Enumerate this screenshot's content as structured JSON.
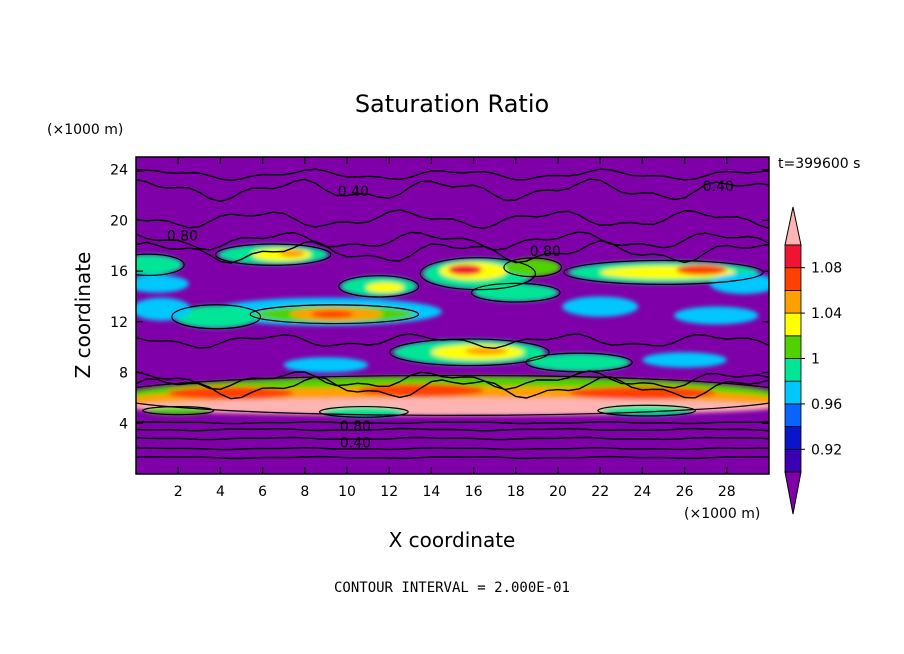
{
  "chart_data": {
    "type": "heatmap",
    "title": "Saturation Ratio",
    "xlabel": "X coordinate",
    "ylabel": "Z coordinate",
    "x_unit": "(×1000 m)",
    "y_unit": "(×1000 m)",
    "time_label": "t=399600 s",
    "footer": "CONTOUR INTERVAL = 2.000E-01",
    "xlim": [
      0,
      30
    ],
    "ylim": [
      0,
      25
    ],
    "x_ticks": [
      2,
      4,
      6,
      8,
      10,
      12,
      14,
      16,
      18,
      20,
      22,
      24,
      26,
      28
    ],
    "y_ticks": [
      4,
      8,
      12,
      16,
      20,
      24
    ],
    "colorbar": {
      "levels": [
        0.9,
        0.92,
        0.94,
        0.96,
        0.98,
        1.0,
        1.02,
        1.04,
        1.06,
        1.08,
        1.1
      ],
      "labels": [
        "0.92",
        "0.96",
        "1",
        "1.04",
        "1.08"
      ],
      "colors": [
        "#7f00a8",
        "#3c00b4",
        "#0a14c8",
        "#0a64ff",
        "#00c8ff",
        "#00e696",
        "#50d200",
        "#ffff00",
        "#ffa000",
        "#ff4000",
        "#f01432",
        "#ffb4b4"
      ]
    },
    "background_color": "#7f00a8",
    "contour_labels": [
      {
        "text": "0.40",
        "x": 10.3,
        "z": 22.3
      },
      {
        "text": "0.40",
        "x": 27.6,
        "z": 22.7
      },
      {
        "text": "0.80",
        "x": 2.2,
        "z": 18.8
      },
      {
        "text": "0.80",
        "x": 19.4,
        "z": 17.6
      },
      {
        "text": "0.80",
        "x": 10.4,
        "z": 3.8
      },
      {
        "text": "0.40",
        "x": 10.4,
        "z": 2.5
      }
    ],
    "features": [
      {
        "name": "upper-band-left",
        "x": 0.6,
        "z": 16.5,
        "rx": 1.6,
        "rz": 0.8,
        "level": 5
      },
      {
        "name": "upper-band-left2",
        "x": 1.0,
        "z": 15.0,
        "rx": 1.5,
        "rz": 0.7,
        "level": 4
      },
      {
        "name": "blob-7-17",
        "x": 6.5,
        "z": 17.3,
        "rx": 2.6,
        "rz": 0.8,
        "level": 5
      },
      {
        "name": "blob-7-17-core",
        "x": 6.9,
        "z": 17.3,
        "rx": 1.4,
        "rz": 0.5,
        "level": 7
      },
      {
        "name": "blob-7-17-hot",
        "x": 7.4,
        "z": 17.4,
        "rx": 0.6,
        "rz": 0.3,
        "level": 8
      },
      {
        "name": "blob-12-15",
        "x": 11.5,
        "z": 14.8,
        "rx": 1.8,
        "rz": 0.8,
        "level": 5
      },
      {
        "name": "blob-12-15-core",
        "x": 11.8,
        "z": 14.7,
        "rx": 0.9,
        "rz": 0.4,
        "level": 7
      },
      {
        "name": "band-12",
        "x": 9.0,
        "z": 12.8,
        "rx": 5.5,
        "rz": 1.1,
        "level": 4
      },
      {
        "name": "band-12-mid",
        "x": 9.4,
        "z": 12.6,
        "rx": 3.8,
        "rz": 0.7,
        "level": 6
      },
      {
        "name": "band-12-core",
        "x": 9.5,
        "z": 12.6,
        "rx": 2.2,
        "rz": 0.5,
        "level": 8
      },
      {
        "name": "band-12-hot",
        "x": 9.3,
        "z": 12.6,
        "rx": 1.0,
        "rz": 0.3,
        "level": 9
      },
      {
        "name": "blob-4-12",
        "x": 3.8,
        "z": 12.4,
        "rx": 2.0,
        "rz": 0.9,
        "level": 5
      },
      {
        "name": "blob-1-13",
        "x": 1.2,
        "z": 13.0,
        "rx": 1.4,
        "rz": 0.9,
        "level": 4
      },
      {
        "name": "blob-16-16",
        "x": 16.2,
        "z": 15.8,
        "rx": 2.6,
        "rz": 1.2,
        "level": 5
      },
      {
        "name": "blob-16-16-core",
        "x": 16.0,
        "z": 16.0,
        "rx": 1.6,
        "rz": 0.7,
        "level": 7
      },
      {
        "name": "blob-16-16-hot",
        "x": 15.6,
        "z": 16.1,
        "rx": 0.8,
        "rz": 0.4,
        "level": 10
      },
      {
        "name": "blob-19-16",
        "x": 18.8,
        "z": 16.3,
        "rx": 1.3,
        "rz": 0.7,
        "level": 6
      },
      {
        "name": "blob-18-14",
        "x": 18.0,
        "z": 14.3,
        "rx": 2.0,
        "rz": 0.7,
        "level": 5
      },
      {
        "name": "band-25-16",
        "x": 25.0,
        "z": 15.9,
        "rx": 4.5,
        "rz": 0.9,
        "level": 5
      },
      {
        "name": "band-25-16-core",
        "x": 25.2,
        "z": 15.9,
        "rx": 3.2,
        "rz": 0.5,
        "level": 7
      },
      {
        "name": "band-25-16-hot",
        "x": 26.8,
        "z": 16.1,
        "rx": 1.2,
        "rz": 0.4,
        "level": 9
      },
      {
        "name": "blob-28-15",
        "x": 28.8,
        "z": 15.0,
        "rx": 1.6,
        "rz": 0.8,
        "level": 4
      },
      {
        "name": "blob-22-13",
        "x": 22.0,
        "z": 13.2,
        "rx": 1.8,
        "rz": 0.8,
        "level": 4
      },
      {
        "name": "blob-27-12",
        "x": 27.5,
        "z": 12.5,
        "rx": 2.0,
        "rz": 0.7,
        "level": 4
      },
      {
        "name": "blob-16-10",
        "x": 15.8,
        "z": 9.6,
        "rx": 3.6,
        "rz": 1.0,
        "level": 5
      },
      {
        "name": "blob-16-10-core",
        "x": 16.2,
        "z": 9.6,
        "rx": 2.2,
        "rz": 0.6,
        "level": 7
      },
      {
        "name": "blob-16-10-hot",
        "x": 16.6,
        "z": 9.7,
        "rx": 1.0,
        "rz": 0.3,
        "level": 8
      },
      {
        "name": "blob-21-9",
        "x": 21.0,
        "z": 8.8,
        "rx": 2.4,
        "rz": 0.7,
        "level": 5
      },
      {
        "name": "blob-26-9",
        "x": 26.0,
        "z": 9.0,
        "rx": 2.0,
        "rz": 0.6,
        "level": 4
      },
      {
        "name": "blob-9-9",
        "x": 9.0,
        "z": 8.6,
        "rx": 2.0,
        "rz": 0.6,
        "level": 4
      },
      {
        "name": "low-band",
        "x": 15.0,
        "z": 6.2,
        "rx": 15.5,
        "rz": 1.5,
        "level": 6
      },
      {
        "name": "low-band-mid",
        "x": 15.0,
        "z": 5.8,
        "rx": 15.5,
        "rz": 1.1,
        "level": 8
      },
      {
        "name": "low-band-core",
        "x": 15.0,
        "z": 5.3,
        "rx": 15.5,
        "rz": 0.7,
        "level": 11
      },
      {
        "name": "low-hot-1",
        "x": 4.5,
        "z": 6.4,
        "rx": 3.0,
        "rz": 0.5,
        "level": 9
      },
      {
        "name": "low-hot-2",
        "x": 13.5,
        "z": 6.6,
        "rx": 3.0,
        "rz": 0.5,
        "level": 9
      },
      {
        "name": "low-hot-3",
        "x": 24.0,
        "z": 6.4,
        "rx": 3.5,
        "rz": 0.5,
        "level": 9
      },
      {
        "name": "low-cool-1",
        "x": 10.8,
        "z": 4.9,
        "rx": 2.0,
        "rz": 0.4,
        "level": 5
      },
      {
        "name": "low-cool-2",
        "x": 24.2,
        "z": 5.0,
        "rx": 2.2,
        "rz": 0.4,
        "level": 5
      },
      {
        "name": "low-cool-3",
        "x": 2.0,
        "z": 5.0,
        "rx": 1.6,
        "rz": 0.3,
        "level": 6
      }
    ]
  }
}
